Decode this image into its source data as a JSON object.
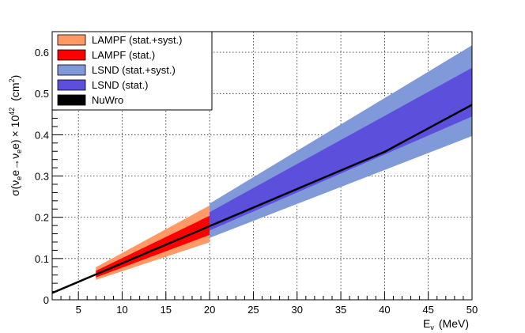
{
  "chart_data": {
    "type": "area",
    "title": "",
    "xlabel": "E_ν (MeV)",
    "xlabel_parts": {
      "symbol": "E",
      "subscript": "ν",
      "unit": "(MeV)"
    },
    "ylabel": "σ(νe e→νe e) × 10^42 (cm²)",
    "ylabel_parts": {
      "sigma": "σ",
      "open": "(",
      "nu1": "ν",
      "e1": "e",
      "e2": "e",
      "arrow": "→",
      "nu2": "ν",
      "e3": "e",
      "e4": "e",
      "close": ")",
      "times": "× 10",
      "exp": "42",
      "unit_open": "(cm",
      "unit_sup": "2",
      "unit_close": ")"
    },
    "xlim": [
      2,
      50
    ],
    "ylim": [
      0,
      0.65
    ],
    "xticks": [
      "5",
      "10",
      "15",
      "20",
      "25",
      "30",
      "35",
      "40",
      "45",
      "50"
    ],
    "yticks": [
      "0",
      "0.1",
      "0.2",
      "0.3",
      "0.4",
      "0.5",
      "0.6"
    ],
    "grid": true,
    "legend_position": "top-left",
    "series": [
      {
        "name": "LAMPF (stat.+syst.)",
        "kind": "band",
        "color": "#ff9966",
        "x": [
          7,
          20
        ],
        "upper_frac": 0.28,
        "lower_frac": 0.22
      },
      {
        "name": "LAMPF (stat.)",
        "kind": "band",
        "color": "#ff0000",
        "x": [
          7,
          20
        ],
        "upper_frac": 0.14,
        "lower_frac": 0.12
      },
      {
        "name": "LSND (stat.+syst.)",
        "kind": "band",
        "color": "#7f99d9",
        "x": [
          20,
          50
        ],
        "upper_frac": 0.305,
        "lower_frac": 0.16
      },
      {
        "name": "LSND (stat.)",
        "kind": "band",
        "color": "#5c4fdb",
        "x": [
          20,
          50
        ],
        "upper_frac": 0.19,
        "lower_frac": 0.06
      },
      {
        "name": "NuWro",
        "kind": "line",
        "color": "#000000",
        "x": [
          2,
          5,
          10,
          20,
          30,
          40,
          50
        ],
        "y": [
          0.0165,
          0.0436,
          0.0886,
          0.1786,
          0.2686,
          0.3586,
          0.4726
        ]
      }
    ]
  }
}
